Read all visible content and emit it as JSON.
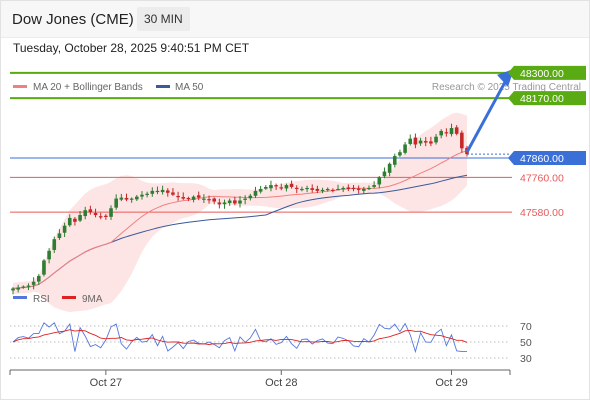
{
  "header": {
    "title": "Dow Jones (CME)",
    "interval": "30 MIN",
    "datetime": "Tuesday, October 28, 2025 9:40:51 PM CET"
  },
  "colors": {
    "candle_up": "#2e7d32",
    "candle_down": "#c62828",
    "ma20": "#f08080",
    "bollinger_fill": "#fde0e0",
    "ma50": "#3a5a9a",
    "target": "#5aaa14",
    "pivot": "#3a6fd8",
    "support": "#e85a5a",
    "rsi": "#5577dd",
    "rsi_ma": "#dd2222"
  },
  "chart_data": [
    {
      "type": "candlestick",
      "legend": [
        {
          "name": "MA 20 + Bollinger Bands",
          "color": "#f08080"
        },
        {
          "name": "MA 50",
          "color": "#3a5a9a"
        }
      ],
      "credit": "Research © 2025 Trading Central",
      "ylim": [
        47000,
        48500
      ],
      "x_ticks": [
        "Oct 27",
        "Oct 28",
        "Oct 29"
      ],
      "x_tick_index": [
        18,
        52,
        85
      ],
      "levels": [
        {
          "label": "48300.00",
          "value": 48300,
          "kind": "target"
        },
        {
          "label": "48170.00",
          "value": 48170,
          "kind": "target"
        },
        {
          "label": "47860.00",
          "value": 47860,
          "kind": "pivot"
        },
        {
          "label": "47760.00",
          "value": 47760,
          "kind": "support"
        },
        {
          "label": "47580.00",
          "value": 47580,
          "kind": "support"
        }
      ],
      "close": [
        47185,
        47190,
        47195,
        47200,
        47220,
        47250,
        47330,
        47380,
        47440,
        47470,
        47510,
        47550,
        47530,
        47565,
        47590,
        47580,
        47565,
        47555,
        47560,
        47600,
        47650,
        47655,
        47645,
        47650,
        47660,
        47670,
        47675,
        47690,
        47690,
        47695,
        47680,
        47670,
        47660,
        47650,
        47650,
        47660,
        47655,
        47650,
        47645,
        47635,
        47620,
        47630,
        47640,
        47625,
        47640,
        47650,
        47665,
        47690,
        47700,
        47710,
        47720,
        47715,
        47705,
        47720,
        47710,
        47700,
        47700,
        47705,
        47695,
        47690,
        47695,
        47700,
        47695,
        47700,
        47705,
        47700,
        47700,
        47695,
        47700,
        47705,
        47720,
        47760,
        47790,
        47830,
        47870,
        47890,
        47930,
        47960,
        47930,
        47950,
        47940,
        47935,
        47970,
        48000,
        47990,
        48015,
        47985,
        47910,
        47880
      ]
    },
    {
      "type": "line",
      "title": "RSI",
      "legend": [
        {
          "name": "RSI",
          "color": "#5577dd"
        },
        {
          "name": "9MA",
          "color": "#dd2222"
        }
      ],
      "y_ticks": [
        70,
        50,
        30
      ],
      "ylim": [
        20,
        85
      ]
    }
  ]
}
